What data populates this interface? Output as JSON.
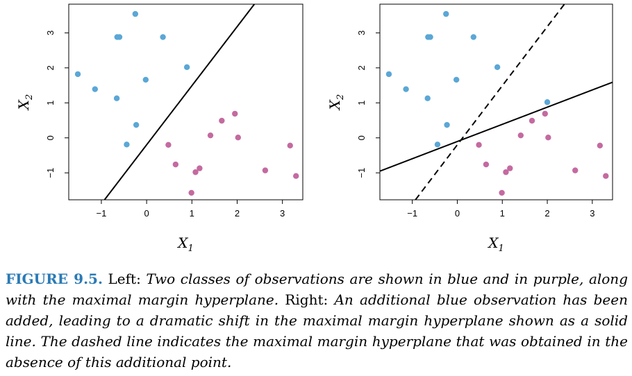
{
  "chart_data": [
    {
      "type": "scatter",
      "title": "",
      "xlabel": "X",
      "xlabel_sub": "1",
      "ylabel": "X",
      "ylabel_sub": "2",
      "xlim": [
        -1.72,
        3.45
      ],
      "ylim": [
        -1.77,
        3.82
      ],
      "xticks": [
        -1,
        0,
        1,
        2,
        3
      ],
      "xtick_labels": [
        "−1",
        "0",
        "1",
        "2",
        "3"
      ],
      "yticks": [
        -1,
        0,
        1,
        2,
        3
      ],
      "ytick_labels": [
        "−1",
        "0",
        "1",
        "2",
        "3"
      ],
      "grid": false,
      "colors": {
        "blue": "#5aa7d6",
        "purple": "#c46aa0"
      },
      "series": [
        {
          "color": "blue",
          "points": [
            [
              -1.52,
              1.82
            ],
            [
              -1.14,
              1.39
            ],
            [
              -0.65,
              2.88
            ],
            [
              -0.6,
              2.88
            ],
            [
              -0.66,
              1.13
            ],
            [
              -0.25,
              3.54
            ],
            [
              -0.02,
              1.66
            ],
            [
              0.36,
              2.88
            ],
            [
              0.89,
              2.02
            ],
            [
              -0.23,
              0.37
            ],
            [
              -0.44,
              -0.19
            ]
          ]
        },
        {
          "color": "purple",
          "points": [
            [
              0.48,
              -0.2
            ],
            [
              0.64,
              -0.76
            ],
            [
              1.08,
              -0.98
            ],
            [
              1.17,
              -0.87
            ],
            [
              0.99,
              -1.57
            ],
            [
              1.41,
              0.07
            ],
            [
              1.66,
              0.49
            ],
            [
              1.95,
              0.69
            ],
            [
              2.02,
              0.01
            ],
            [
              2.62,
              -0.93
            ],
            [
              3.17,
              -0.22
            ],
            [
              3.3,
              -1.09
            ]
          ]
        }
      ],
      "lines": [
        {
          "style": "solid",
          "x": [
            -0.93,
            2.38
          ],
          "y": [
            -1.77,
            3.82
          ]
        }
      ]
    },
    {
      "type": "scatter",
      "title": "",
      "xlabel": "X",
      "xlabel_sub": "1",
      "ylabel": "X",
      "ylabel_sub": "2",
      "xlim": [
        -1.72,
        3.45
      ],
      "ylim": [
        -1.77,
        3.82
      ],
      "xticks": [
        -1,
        0,
        1,
        2,
        3
      ],
      "xtick_labels": [
        "−1",
        "0",
        "1",
        "2",
        "3"
      ],
      "yticks": [
        -1,
        0,
        1,
        2,
        3
      ],
      "ytick_labels": [
        "−1",
        "0",
        "1",
        "2",
        "3"
      ],
      "grid": false,
      "colors": {
        "blue": "#5aa7d6",
        "purple": "#c46aa0"
      },
      "series": [
        {
          "color": "blue",
          "points": [
            [
              -1.52,
              1.82
            ],
            [
              -1.14,
              1.39
            ],
            [
              -0.65,
              2.88
            ],
            [
              -0.6,
              2.88
            ],
            [
              -0.66,
              1.13
            ],
            [
              -0.25,
              3.54
            ],
            [
              -0.02,
              1.66
            ],
            [
              0.36,
              2.88
            ],
            [
              0.89,
              2.02
            ],
            [
              -0.23,
              0.37
            ],
            [
              -0.44,
              -0.19
            ],
            [
              2.0,
              1.02
            ]
          ]
        },
        {
          "color": "purple",
          "points": [
            [
              0.48,
              -0.2
            ],
            [
              0.64,
              -0.76
            ],
            [
              1.08,
              -0.98
            ],
            [
              1.17,
              -0.87
            ],
            [
              0.99,
              -1.57
            ],
            [
              1.41,
              0.07
            ],
            [
              1.66,
              0.49
            ],
            [
              1.95,
              0.69
            ],
            [
              2.02,
              0.01
            ],
            [
              2.62,
              -0.93
            ],
            [
              3.17,
              -0.22
            ],
            [
              3.3,
              -1.09
            ]
          ]
        }
      ],
      "lines": [
        {
          "style": "solid",
          "x": [
            -1.72,
            3.45
          ],
          "y": [
            -0.95,
            1.59
          ]
        },
        {
          "style": "dashed",
          "x": [
            -0.93,
            2.38
          ],
          "y": [
            -1.77,
            3.82
          ]
        }
      ]
    }
  ],
  "caption": {
    "label": "FIGURE 9.5.",
    "part1_roman": " Left: ",
    "part1_italic": "Two classes of observations are shown in blue and in purple, along with the maximal margin hyperplane.",
    "part2_roman": " Right: ",
    "part2_italic": "An additional blue observation has been added, leading to a dramatic shift in the maximal margin hyperplane shown as a solid line. The dashed line indicates the maximal margin hyperplane that was obtained in the absence of this additional point."
  }
}
